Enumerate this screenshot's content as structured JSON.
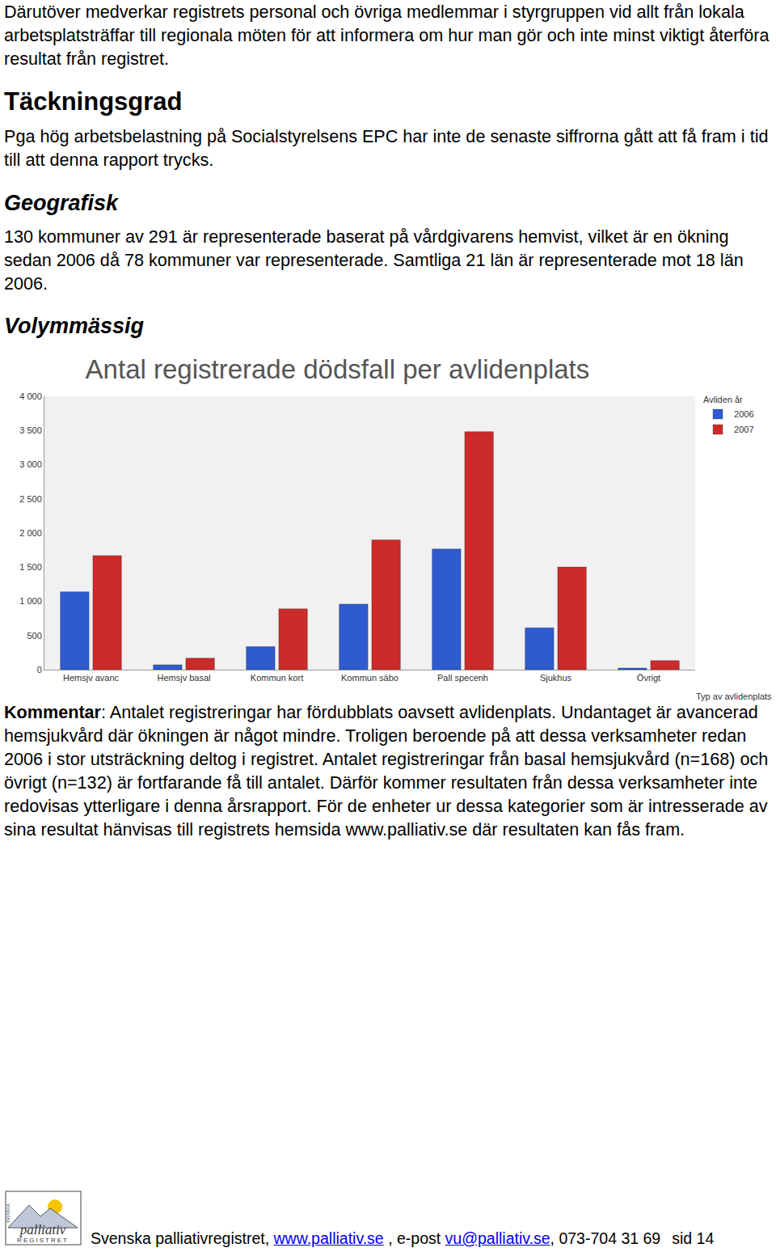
{
  "intro": "Därutöver medverkar registrets personal och övriga medlemmar i styrgruppen vid allt från lokala arbetsplatsträffar till regionala möten för att informera om hur man gör och inte minst viktigt återföra resultat från registret.",
  "sections": [
    {
      "heading": "Täckningsgrad",
      "level": 1,
      "text": "Pga hög arbetsbelastning på Socialstyrelsens EPC har inte de senaste siffrorna gått att få fram i tid till att denna rapport trycks."
    },
    {
      "heading": "Geografisk",
      "level": 2,
      "text": "130 kommuner av 291 är representerade baserat på vårdgivarens hemvist, vilket är en ökning sedan 2006 då 78 kommuner var representerade. Samtliga 21 län är representerade mot 18 län 2006."
    },
    {
      "heading": "Volymmässig",
      "level": 2,
      "text": ""
    }
  ],
  "chart_data": {
    "type": "bar",
    "title": "Antal registrerade dödsfall per avlidenplats",
    "x_label": "Typ av avlidenplats",
    "legend_title": "Avliden år",
    "legend": "top right",
    "categories": [
      "Hemsjv avanc",
      "Hemsjv basal",
      "Kommun kort",
      "Kommun säbo",
      "Pall specenh",
      "Sjukhus",
      "Övrigt"
    ],
    "series": [
      {
        "name": "2006",
        "color": "#2f5bd0",
        "values": [
          1140,
          72,
          336,
          960,
          1765,
          613,
          24
        ]
      },
      {
        "name": "2007",
        "color": "#cc2b2b",
        "values": [
          1670,
          168,
          890,
          1898,
          3483,
          1502,
          132
        ]
      }
    ],
    "ylim": [
      0,
      4000
    ],
    "yticks": [
      0,
      500,
      {
        "value": 1000,
        "label": "1 000"
      },
      {
        "value": 1500,
        "label": "1 500"
      },
      {
        "value": 2000,
        "label": "2 000"
      },
      {
        "value": 2500,
        "label": "2 500"
      },
      {
        "value": 3000,
        "label": "3 000"
      },
      {
        "value": 3500,
        "label": "3 500"
      },
      {
        "value": 4000,
        "label": "4 000"
      }
    ],
    "grid": false
  },
  "comment": {
    "label": "Kommentar",
    "text": ": Antalet registreringar har fördubblats oavsett avlidenplats. Undantaget är avancerad hemsjukvård där ökningen är något mindre. Troligen beroende på att dessa verksamheter redan 2006 i stor utsträckning deltog i registret. Antalet registreringar från basal hemsjukvård (n=168) och övrigt (n=132) är fortfarande få till antalet. Därför kommer resultaten från dessa verksamheter inte redovisas ytterligare i denna årsrapport. För de enheter ur dessa kategorier som är intresserade av sina resultat hänvisas till registrets hemsida www.palliativ.se där resultaten kan fås fram."
  },
  "footer": {
    "logo": [
      "palliativ",
      "REGISTRET",
      "SVENSKA"
    ],
    "parts": [
      {
        "text": "Svenska palliativregistret, ",
        "link": false
      },
      {
        "text": "www.palliativ.se",
        "link": true
      },
      {
        "text": " , e-post ",
        "link": false
      },
      {
        "text": "vu@palliativ.se",
        "link": true
      },
      {
        "text": ", 073-704 31 69",
        "link": false
      }
    ],
    "page": "sid 14"
  }
}
